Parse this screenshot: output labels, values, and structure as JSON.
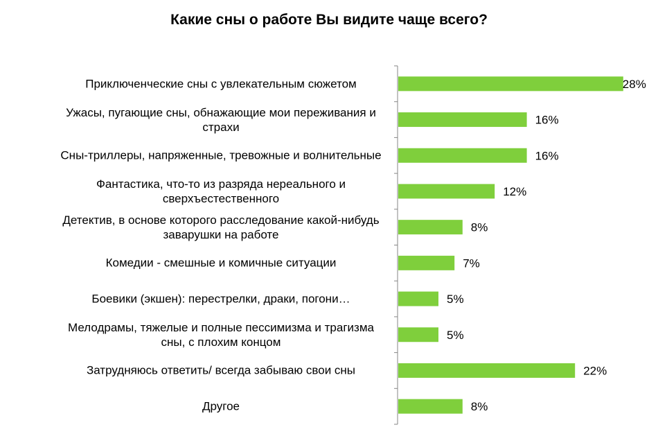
{
  "chart_data": {
    "type": "bar",
    "orientation": "horizontal",
    "title": "Какие сны о работе Вы видите чаще всего?",
    "categories": [
      "Приключенческие сны с увлекательным сюжетом",
      "Ужасы, пугающие сны, обнажающие мои переживания и страхи",
      "Сны-триллеры, напряженные, тревожные и волнительные",
      "Фантастика, что-то из разряда нереального и сверхъестественного",
      "Детектив, в основе которого расследование какой-нибудь заварушки на работе",
      "Комедии - смешные и комичные ситуации",
      "Боевики (экшен): перестрелки, драки, погони…",
      "Мелодрамы, тяжелые и полные пессимизма и трагизма сны, с плохим концом",
      "Затрудняюсь ответить/ всегда забываю свои сны",
      "Другое"
    ],
    "values": [
      28,
      16,
      16,
      12,
      8,
      7,
      5,
      5,
      22,
      8
    ],
    "data_labels": [
      "28%",
      "16%",
      "16%",
      "12%",
      "8%",
      "7%",
      "5%",
      "5%",
      "22%",
      "8%"
    ],
    "value_unit": "%",
    "xlim": [
      0,
      28
    ],
    "grid": false,
    "legend": "none",
    "bar_color": "#7FCF3C"
  }
}
